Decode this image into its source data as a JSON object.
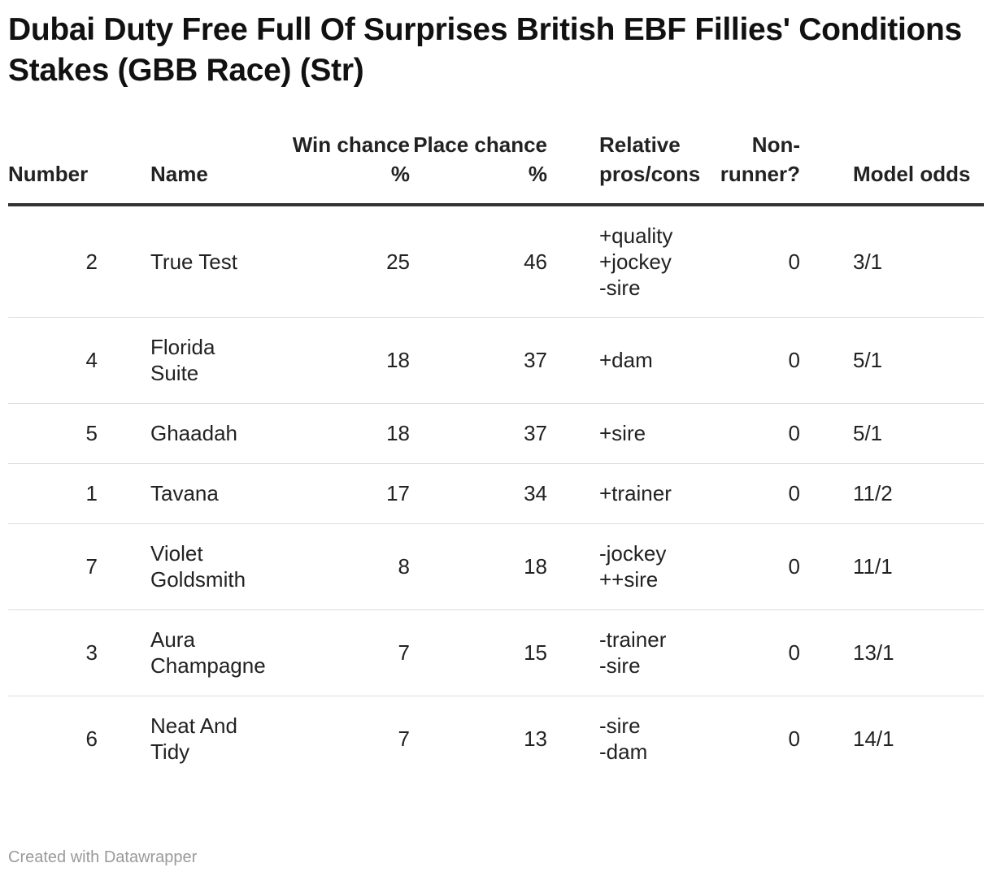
{
  "chart_data": {
    "type": "table",
    "title": "Dubai Duty Free Full Of Surprises British EBF Fillies' Conditions Stakes (GBB Race) (Str)",
    "columns": [
      {
        "key": "number",
        "label": "Number"
      },
      {
        "key": "name",
        "label": "Name"
      },
      {
        "key": "win",
        "label": "Win chance %"
      },
      {
        "key": "place",
        "label": "Place chance %"
      },
      {
        "key": "rel",
        "label": "Relative pros/cons"
      },
      {
        "key": "nr",
        "label": "Non-runner?"
      },
      {
        "key": "odds",
        "label": "Model odds"
      }
    ],
    "rows": [
      {
        "number": 2,
        "name": "True Test",
        "win": 25,
        "place": 46,
        "rel": "+quality\n+jockey\n-sire",
        "nr": 0,
        "odds": "3/1"
      },
      {
        "number": 4,
        "name": "Florida Suite",
        "win": 18,
        "place": 37,
        "rel": "+dam",
        "nr": 0,
        "odds": "5/1"
      },
      {
        "number": 5,
        "name": "Ghaadah",
        "win": 18,
        "place": 37,
        "rel": "+sire",
        "nr": 0,
        "odds": "5/1"
      },
      {
        "number": 1,
        "name": "Tavana",
        "win": 17,
        "place": 34,
        "rel": "+trainer",
        "nr": 0,
        "odds": "11/2"
      },
      {
        "number": 7,
        "name": "Violet Goldsmith",
        "win": 8,
        "place": 18,
        "rel": "-jockey\n++sire",
        "nr": 0,
        "odds": "11/1"
      },
      {
        "number": 3,
        "name": "Aura Champagne",
        "win": 7,
        "place": 15,
        "rel": "-trainer\n-sire",
        "nr": 0,
        "odds": "13/1"
      },
      {
        "number": 6,
        "name": "Neat And Tidy",
        "win": 7,
        "place": 13,
        "rel": "-sire\n-dam",
        "nr": 0,
        "odds": "14/1"
      }
    ]
  },
  "footer": "Created with Datawrapper"
}
